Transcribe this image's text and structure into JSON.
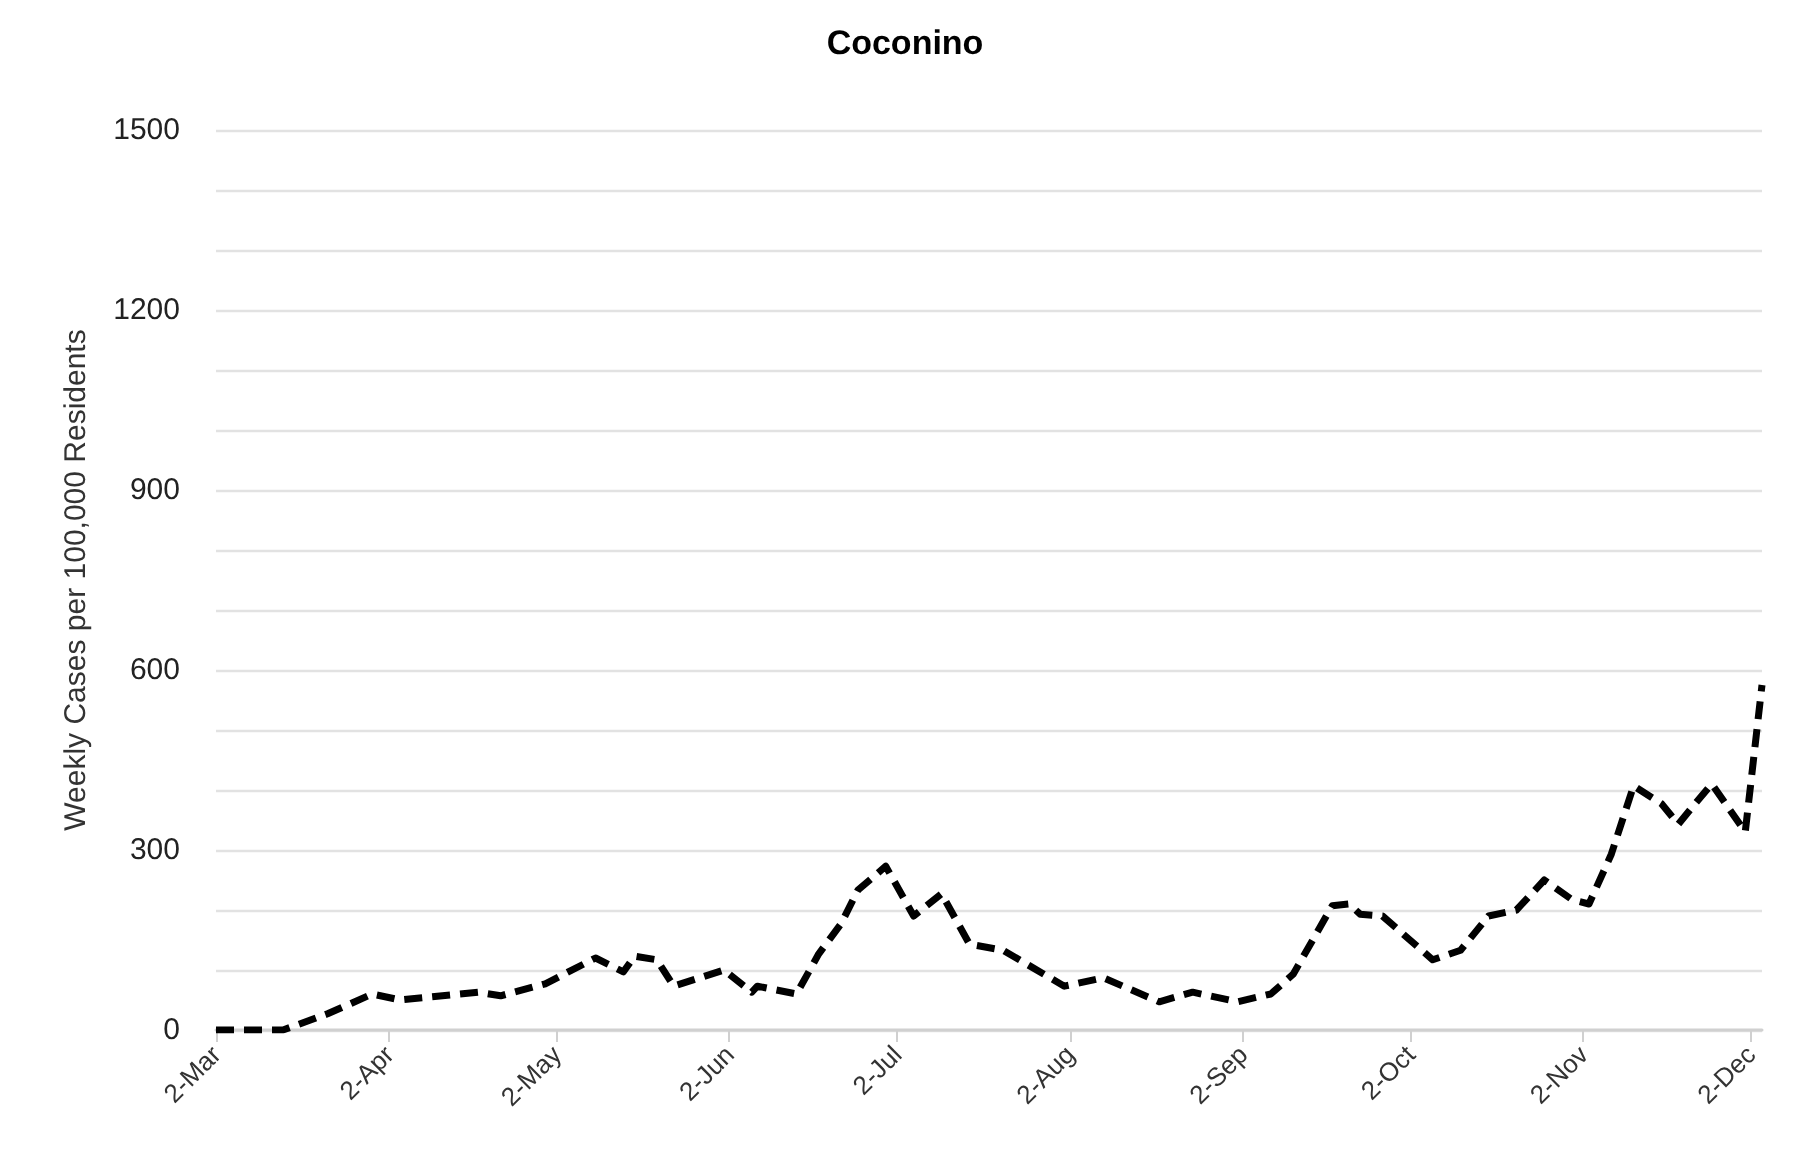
{
  "chart_data": {
    "type": "line",
    "title": "Coconino",
    "ylabel": "Weekly Cases per 100,000 Residents",
    "x": [
      "--03-02",
      "--03-14",
      "--03-22",
      "--03-30",
      "--04-04",
      "--04-18",
      "--04-22",
      "--04-30",
      "--05-09",
      "--05-14",
      "--05-16",
      "--05-20",
      "--05-23",
      "--06-01",
      "--06-06",
      "--06-07",
      "--06-14",
      "--06-18",
      "--06-22",
      "--06-25",
      "--06-30",
      "--07-05",
      "--07-10",
      "--07-15",
      "--07-21",
      "--08-01",
      "--08-08",
      "--08-18",
      "--08-24",
      "--09-01",
      "--09-07",
      "--09-11",
      "--09-18",
      "--09-21",
      "--09-23",
      "--09-27",
      "--10-06",
      "--10-11",
      "--10-16",
      "--10-21",
      "--10-26",
      "--10-31",
      "--11-03",
      "--11-07",
      "--11-11",
      "--11-16",
      "--11-19",
      "--11-22",
      "--11-25",
      "--12-01",
      "--12-04"
    ],
    "series": [
      {
        "color": "#000000",
        "values": [
          0,
          0,
          27,
          60,
          50,
          63,
          57,
          77,
          120,
          97,
          123,
          117,
          73,
          100,
          63,
          73,
          60,
          127,
          177,
          233,
          273,
          190,
          227,
          143,
          133,
          73,
          87,
          47,
          63,
          47,
          60,
          93,
          207,
          210,
          193,
          190,
          117,
          133,
          190,
          200,
          250,
          217,
          210,
          293,
          407,
          377,
          343,
          377,
          410,
          330,
          575
        ]
      }
    ],
    "xlim": [
      "--03-02",
      "--12-04"
    ],
    "xticks": [
      {
        "value": "--03-02",
        "label": "2-Mar"
      },
      {
        "value": "--04-02",
        "label": "2-Apr"
      },
      {
        "value": "--05-02",
        "label": "2-May"
      },
      {
        "value": "--06-02",
        "label": "2-Jun"
      },
      {
        "value": "--07-02",
        "label": "2-Jul"
      },
      {
        "value": "--08-02",
        "label": "2-Aug"
      },
      {
        "value": "--09-02",
        "label": "2-Sep"
      },
      {
        "value": "--10-02",
        "label": "2-Oct"
      },
      {
        "value": "--11-02",
        "label": "2-Nov"
      },
      {
        "value": "--12-02",
        "label": "2-Dec"
      }
    ],
    "ylim": [
      0,
      1500
    ],
    "yticks": [
      0,
      {
        "value": 100,
        "label": null
      },
      {
        "value": 200,
        "label": null
      },
      300,
      {
        "value": 400,
        "label": null
      },
      {
        "value": 500,
        "label": null
      },
      600,
      {
        "value": 700,
        "label": null
      },
      {
        "value": 800,
        "label": null
      },
      900,
      {
        "value": 1000,
        "label": null
      },
      {
        "value": 1100,
        "label": null
      },
      1200,
      {
        "value": 1300,
        "label": null
      },
      {
        "value": 1400,
        "label": null
      },
      1500
    ],
    "grid": "y",
    "marker": "none",
    "line_style": "dashed"
  }
}
